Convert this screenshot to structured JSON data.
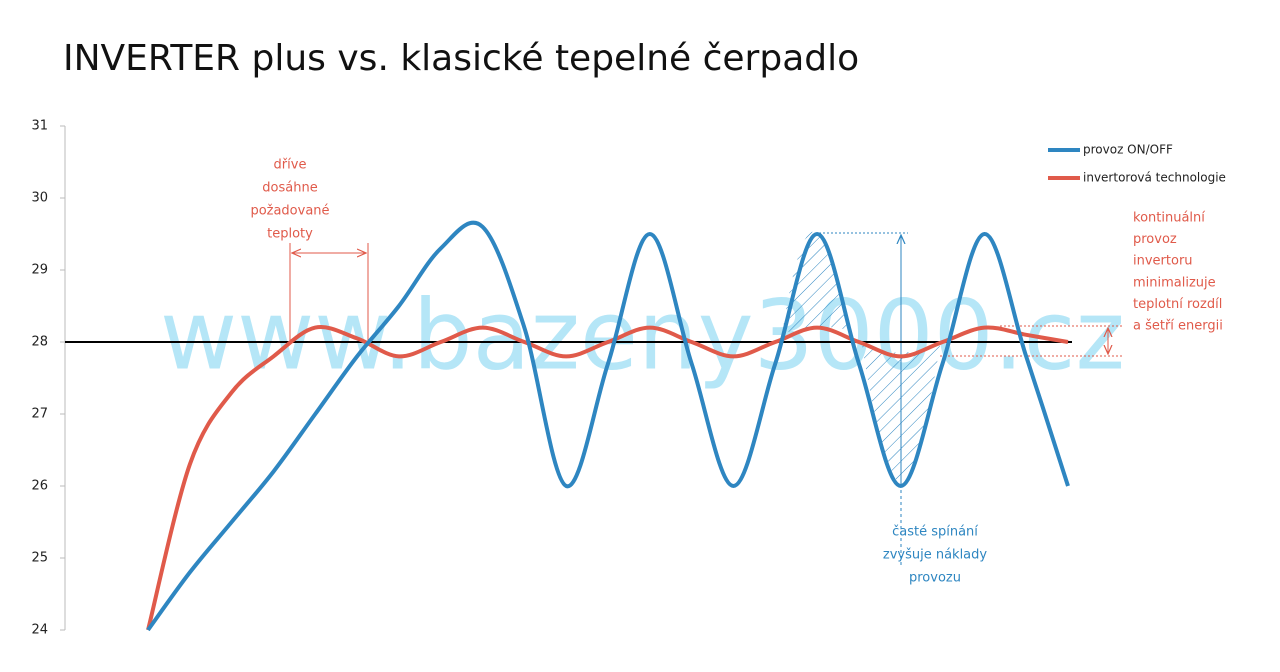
{
  "chart_data": {
    "type": "line",
    "title": "INVERTER plus vs. klasické tepelné čerpadlo",
    "watermark": "www.bazeny3000.cz",
    "categories": [
      null,
      null,
      null,
      null,
      null,
      null,
      null,
      null,
      null,
      null,
      null,
      null,
      null,
      null,
      null,
      null,
      null,
      null,
      null,
      null,
      null,
      null,
      null
    ],
    "series": [
      {
        "name": "provoz ON/OFF",
        "color": "#2e86c1",
        "values": [
          24,
          24.8,
          25.5,
          26.2,
          27,
          27.8,
          28.5,
          29.3,
          29.6,
          28.2,
          26,
          27.7,
          29.5,
          27.7,
          26,
          27.7,
          29.5,
          27.7,
          26,
          27.7,
          29.5,
          27.8,
          26
        ]
      },
      {
        "name": "invertorová technologie",
        "color": "#e05a4a",
        "values": [
          24,
          26.3,
          27.3,
          27.8,
          28.2,
          28.05,
          27.8,
          28,
          28.2,
          28,
          27.8,
          28,
          28.2,
          28,
          27.8,
          28,
          28.2,
          28,
          27.8,
          28,
          28.2,
          28.1,
          28
        ]
      }
    ],
    "reference_line": 28,
    "ylim": [
      24,
      31
    ],
    "yticks": [
      24,
      25,
      26,
      27,
      28,
      29,
      30,
      31
    ],
    "legend": "top-right",
    "annotations": [
      {
        "lines": [
          "dříve",
          "dosáhne",
          "požadované",
          "teploty"
        ],
        "color": "#e05a4a"
      },
      {
        "lines": [
          "kontinuální",
          "provoz",
          "invertoru",
          "minimalizuje",
          "teplotní rozdíl",
          "a šetří energii"
        ],
        "color": "#e05a4a"
      },
      {
        "lines": [
          "časté spínání",
          "zvyšuje náklady",
          "provozu"
        ],
        "color": "#2e86c1"
      }
    ]
  }
}
